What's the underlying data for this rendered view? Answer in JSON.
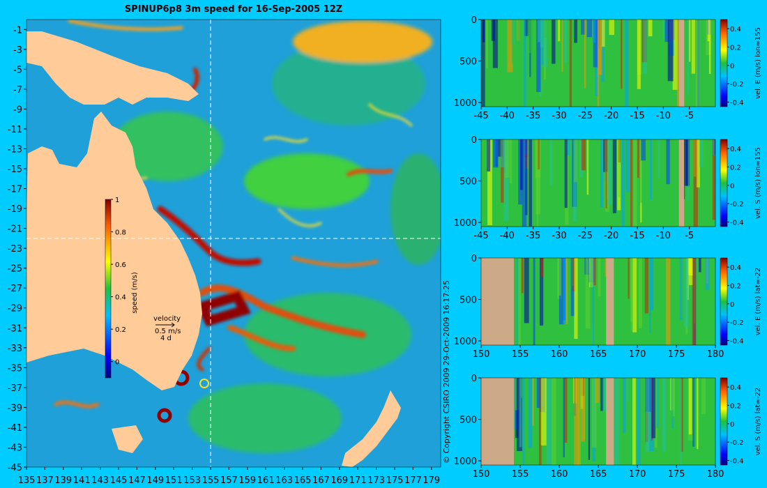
{
  "colors": {
    "background": "#00ccff",
    "land": "#ffcc99",
    "sectionMask": "#ccaa88"
  },
  "copyright": "© Copyright CSIRO 2009  29-Oct-2009 16:17:25",
  "chart_data": [
    {
      "type": "heatmap",
      "title": "SPINUP6p8 3m speed for 16-Sep-2005 12Z",
      "xticks": [
        135,
        137,
        139,
        141,
        143,
        145,
        147,
        149,
        151,
        153,
        155,
        157,
        159,
        161,
        163,
        165,
        167,
        169,
        171,
        173,
        175,
        177,
        179
      ],
      "yticks": [
        -1,
        -3,
        -5,
        -7,
        -9,
        -11,
        -13,
        -15,
        -17,
        -19,
        -21,
        -23,
        -25,
        -27,
        -29,
        -31,
        -33,
        -35,
        -37,
        -39,
        -41,
        -43,
        -45
      ],
      "xlim": [
        135,
        180
      ],
      "ylim": [
        -45,
        0
      ],
      "guides": {
        "lon": 155,
        "lat": -22
      },
      "colorbar": {
        "label": "speed (m/s)",
        "ticks": [
          0,
          0.2,
          0.4,
          0.6,
          0.8,
          1
        ],
        "tick_labels": [
          "0",
          "0.2",
          "0.4",
          "0.6",
          "0.8",
          "1"
        ],
        "range": [
          -0.1,
          1
        ]
      },
      "velocity_key": {
        "title": "velocity",
        "speed": "0.5 m/s",
        "interval": "4 d"
      }
    },
    {
      "type": "heatmap",
      "ylabel": "vel. E (m/s) lon=155",
      "xticks": [
        -45,
        -40,
        -35,
        -30,
        -25,
        -20,
        -15,
        -10,
        -5
      ],
      "xlim": [
        -45,
        0
      ],
      "yticks": [
        0,
        500,
        1000
      ],
      "ylim": [
        1050,
        0
      ],
      "colorbar": {
        "ticks": [
          -0.4,
          -0.2,
          0,
          0.2,
          0.4
        ],
        "tick_labels": [
          "-0.4",
          "-0.2",
          "0",
          "0.2",
          "0.4"
        ],
        "range": [
          -0.45,
          0.5
        ]
      }
    },
    {
      "type": "heatmap",
      "ylabel": "vel. S (m/s) lon=155",
      "xticks": [
        -45,
        -40,
        -35,
        -30,
        -25,
        -20,
        -15,
        -10,
        -5
      ],
      "xlim": [
        -45,
        0
      ],
      "yticks": [
        0,
        500,
        1000
      ],
      "ylim": [
        1050,
        0
      ],
      "colorbar": {
        "ticks": [
          -0.4,
          -0.2,
          0,
          0.2,
          0.4
        ],
        "tick_labels": [
          "-0.4",
          "-0.2",
          "0",
          "0.2",
          "0.4"
        ],
        "range": [
          -0.45,
          0.5
        ]
      }
    },
    {
      "type": "heatmap",
      "ylabel": "vel. E (m/s) lat=-22",
      "xticks": [
        150,
        155,
        160,
        165,
        170,
        175,
        180
      ],
      "xlim": [
        150,
        180
      ],
      "yticks": [
        0,
        500,
        1000
      ],
      "ylim": [
        1050,
        0
      ],
      "colorbar": {
        "ticks": [
          -0.4,
          -0.2,
          0,
          0.2,
          0.4
        ],
        "tick_labels": [
          "-0.4",
          "-0.2",
          "0",
          "0.2",
          "0.4"
        ],
        "range": [
          -0.45,
          0.5
        ]
      }
    },
    {
      "type": "heatmap",
      "ylabel": "vel. S (m/s) lat=-22",
      "xticks": [
        150,
        155,
        160,
        165,
        170,
        175,
        180
      ],
      "xlim": [
        150,
        180
      ],
      "yticks": [
        0,
        500,
        1000
      ],
      "ylim": [
        1050,
        0
      ],
      "colorbar": {
        "ticks": [
          -0.4,
          -0.2,
          0,
          0.2,
          0.4
        ],
        "tick_labels": [
          "-0.4",
          "-0.2",
          "0",
          "0.2",
          "0.4"
        ],
        "range": [
          -0.45,
          0.5
        ]
      }
    }
  ]
}
